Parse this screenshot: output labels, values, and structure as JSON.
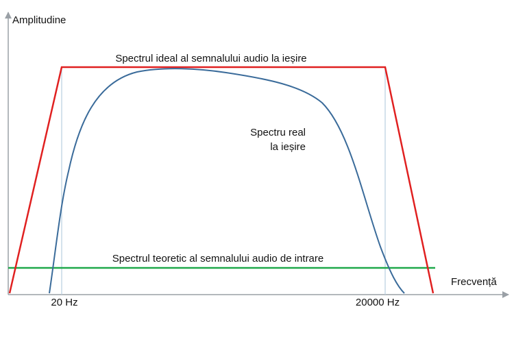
{
  "axes": {
    "y_label": "Amplitudine",
    "x_label": "Frecvență",
    "x_markers": [
      "20 Hz",
      "20000 Hz"
    ]
  },
  "curves": {
    "ideal_output": "Spectrul ideal al semnalului audio la ieșire",
    "real_output": [
      "Spectru real",
      "la ieșire"
    ],
    "theoretical_input": "Spectrul teoretic al semnalului audio de intrare"
  }
}
